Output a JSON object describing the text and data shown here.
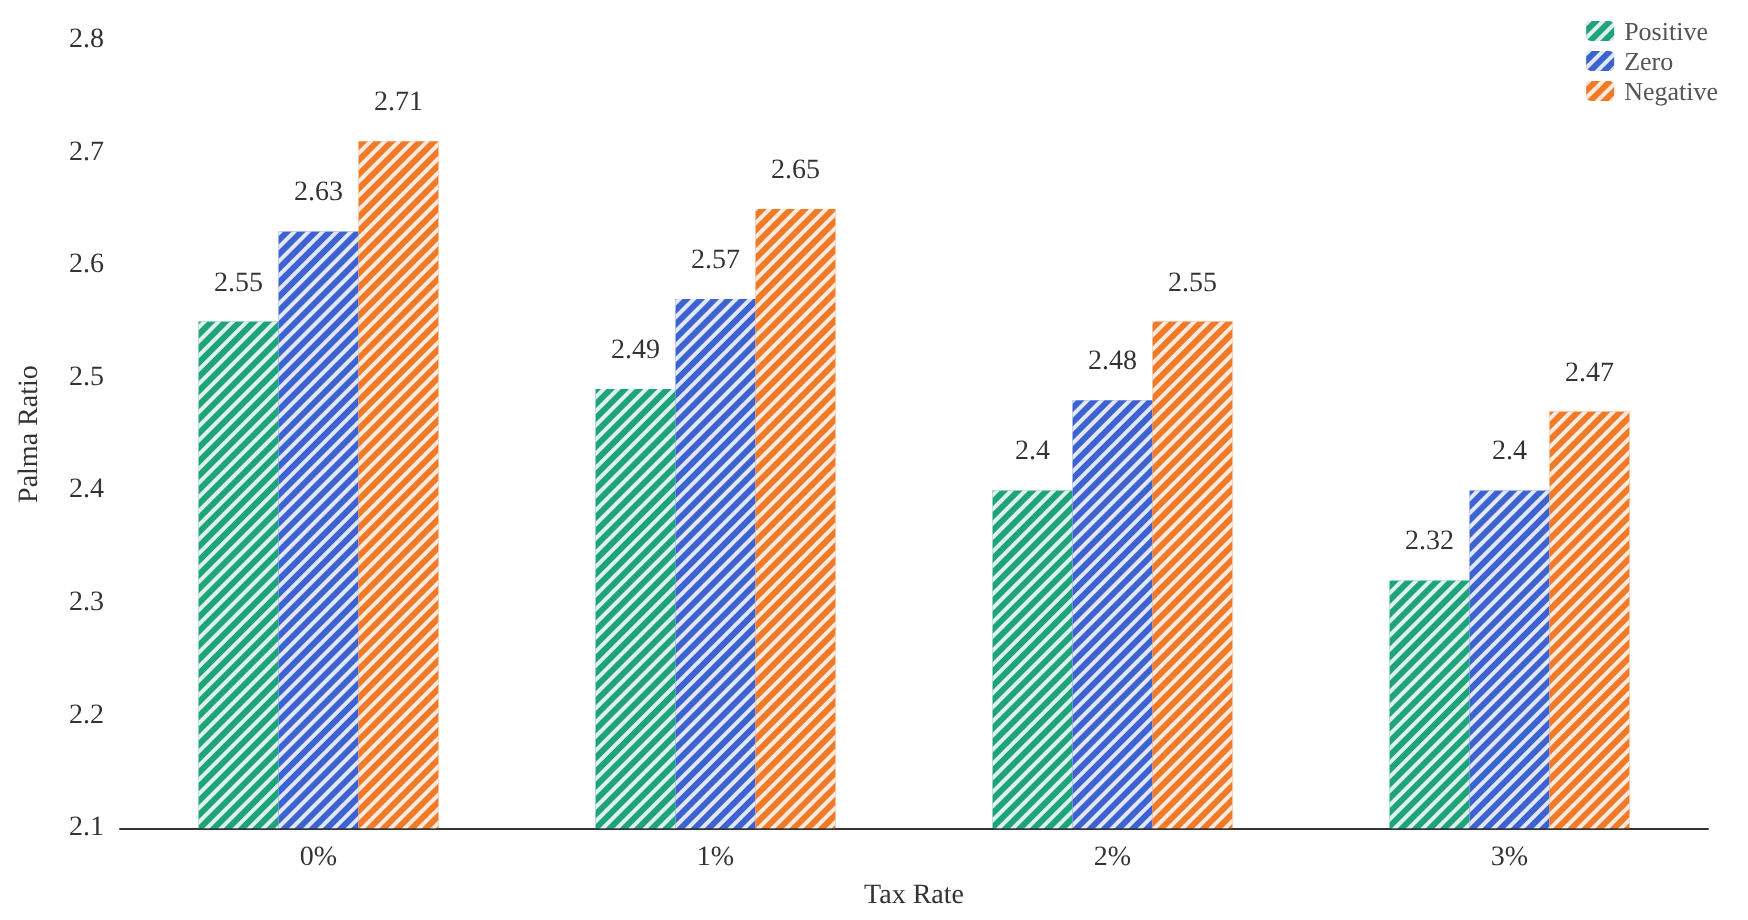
{
  "chart_data": {
    "type": "bar",
    "xlabel": "Tax Rate",
    "ylabel": "Palma Ratio",
    "categories": [
      "0%",
      "1%",
      "2%",
      "3%"
    ],
    "series": [
      {
        "name": "Positive",
        "color": "#1fa37a",
        "values": [
          2.55,
          2.49,
          2.4,
          2.32
        ]
      },
      {
        "name": "Zero",
        "color": "#3d63d1",
        "values": [
          2.63,
          2.57,
          2.48,
          2.4
        ]
      },
      {
        "name": "Negative",
        "color": "#f07a28",
        "values": [
          2.71,
          2.65,
          2.55,
          2.47
        ]
      }
    ],
    "ylim": [
      2.1,
      2.8
    ],
    "yticks": [
      2.1,
      2.2,
      2.3,
      2.4,
      2.5,
      2.6,
      2.7,
      2.8
    ],
    "data_labels": true,
    "legend": "top right",
    "grid": false
  }
}
